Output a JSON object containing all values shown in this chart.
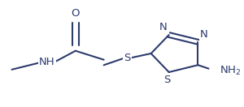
{
  "bg": "#ffffff",
  "lc": "#2d3b6e",
  "fs": 9.5,
  "lw": 1.5,
  "xlim": [
    0.0,
    10.0
  ],
  "ylim": [
    0.0,
    6.0
  ]
}
